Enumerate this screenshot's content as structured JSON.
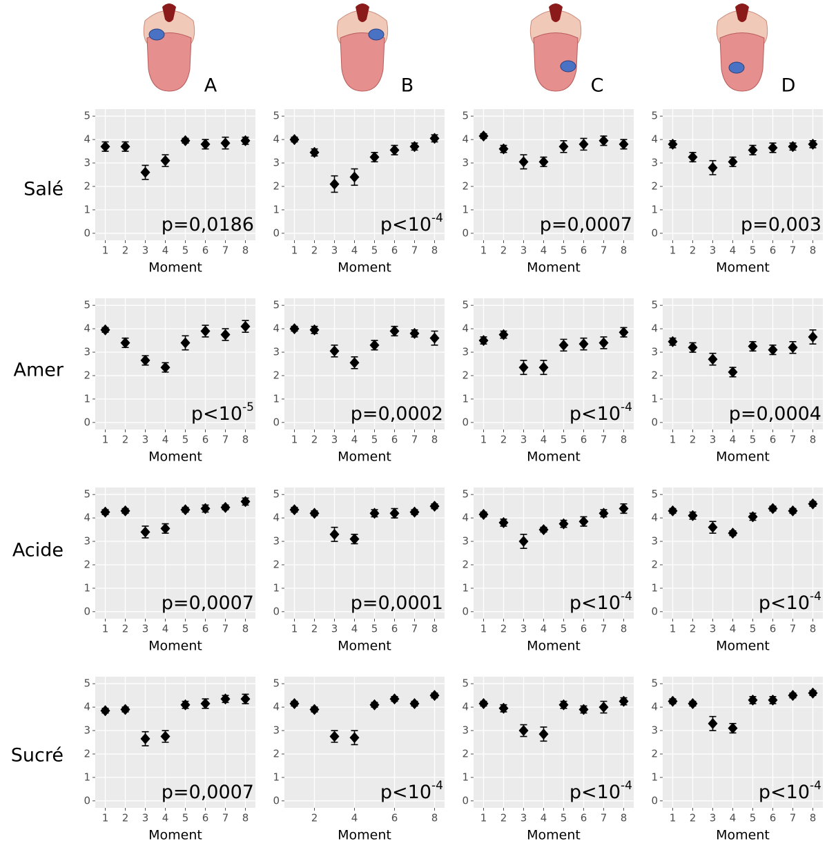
{
  "columns": [
    "A",
    "B",
    "C",
    "D"
  ],
  "rows": [
    "Salé",
    "Amer",
    "Acide",
    "Sucré"
  ],
  "chart_data": [
    {
      "type": "scatter",
      "x": [
        1,
        2,
        3,
        4,
        5,
        6,
        7,
        8
      ],
      "values": [
        3.7,
        3.7,
        2.6,
        3.1,
        3.95,
        3.8,
        3.85,
        3.95
      ],
      "errors": [
        0.2,
        0.2,
        0.3,
        0.25,
        0.1,
        0.2,
        0.25,
        0.15
      ],
      "xlabel": "Moment",
      "annotation": "p=0,0186",
      "xlim": [
        0.5,
        8.5
      ],
      "ylim": [
        -0.3,
        5.3
      ],
      "xticks": [
        1,
        2,
        3,
        4,
        5,
        6,
        7,
        8
      ],
      "yticks": [
        0,
        1,
        2,
        3,
        4,
        5
      ],
      "grid": true,
      "color": "#000000"
    },
    {
      "type": "scatter",
      "x": [
        1,
        2,
        3,
        4,
        5,
        6,
        7,
        8
      ],
      "values": [
        4.0,
        3.45,
        2.1,
        2.4,
        3.25,
        3.55,
        3.7,
        4.05
      ],
      "errors": [
        0.1,
        0.15,
        0.35,
        0.35,
        0.2,
        0.2,
        0.15,
        0.15
      ],
      "xlabel": "Moment",
      "annotation": "p<10",
      "annotation_exponent": "-4",
      "xlim": [
        0.5,
        8.5
      ],
      "ylim": [
        -0.3,
        5.3
      ],
      "xticks": [
        1,
        2,
        3,
        4,
        5,
        6,
        7,
        8
      ],
      "yticks": [
        0,
        1,
        2,
        3,
        4,
        5
      ],
      "grid": true,
      "color": "#000000"
    },
    {
      "type": "scatter",
      "x": [
        1,
        2,
        3,
        4,
        5,
        6,
        7,
        8
      ],
      "values": [
        4.15,
        3.6,
        3.05,
        3.05,
        3.7,
        3.8,
        3.95,
        3.8
      ],
      "errors": [
        0.1,
        0.15,
        0.3,
        0.2,
        0.25,
        0.25,
        0.2,
        0.2
      ],
      "xlabel": "Moment",
      "annotation": "p=0,0007",
      "xlim": [
        0.5,
        8.5
      ],
      "ylim": [
        -0.3,
        5.3
      ],
      "xticks": [
        1,
        2,
        3,
        4,
        5,
        6,
        7,
        8
      ],
      "yticks": [
        0,
        1,
        2,
        3,
        4,
        5
      ],
      "grid": true,
      "color": "#000000"
    },
    {
      "type": "scatter",
      "x": [
        1,
        2,
        3,
        4,
        5,
        6,
        7,
        8
      ],
      "values": [
        3.8,
        3.25,
        2.8,
        3.05,
        3.55,
        3.65,
        3.7,
        3.8
      ],
      "errors": [
        0.15,
        0.2,
        0.3,
        0.2,
        0.2,
        0.2,
        0.15,
        0.15
      ],
      "xlabel": "Moment",
      "annotation": "p=0,003",
      "xlim": [
        0.5,
        8.5
      ],
      "ylim": [
        -0.3,
        5.3
      ],
      "xticks": [
        1,
        2,
        3,
        4,
        5,
        6,
        7,
        8
      ],
      "yticks": [
        0,
        1,
        2,
        3,
        4,
        5
      ],
      "grid": true,
      "color": "#000000"
    },
    {
      "type": "scatter",
      "x": [
        1,
        2,
        3,
        4,
        5,
        6,
        7,
        8
      ],
      "values": [
        3.95,
        3.4,
        2.65,
        2.35,
        3.4,
        3.9,
        3.75,
        4.1
      ],
      "errors": [
        0.1,
        0.2,
        0.2,
        0.2,
        0.3,
        0.25,
        0.25,
        0.25
      ],
      "xlabel": "Moment",
      "annotation": "p<10",
      "annotation_exponent": "-5",
      "xlim": [
        0.5,
        8.5
      ],
      "ylim": [
        -0.3,
        5.3
      ],
      "xticks": [
        1,
        2,
        3,
        4,
        5,
        6,
        7,
        8
      ],
      "yticks": [
        0,
        1,
        2,
        3,
        4,
        5
      ],
      "grid": true,
      "color": "#000000"
    },
    {
      "type": "scatter",
      "x": [
        1,
        2,
        3,
        4,
        5,
        6,
        7,
        8
      ],
      "values": [
        4.0,
        3.95,
        3.05,
        2.55,
        3.3,
        3.9,
        3.8,
        3.6
      ],
      "errors": [
        0.1,
        0.15,
        0.25,
        0.25,
        0.2,
        0.2,
        0.15,
        0.3
      ],
      "xlabel": "Moment",
      "annotation": "p=0,0002",
      "xlim": [
        0.5,
        8.5
      ],
      "ylim": [
        -0.3,
        5.3
      ],
      "xticks": [
        1,
        2,
        3,
        4,
        5,
        6,
        7,
        8
      ],
      "yticks": [
        0,
        1,
        2,
        3,
        4,
        5
      ],
      "grid": true,
      "color": "#000000"
    },
    {
      "type": "scatter",
      "x": [
        1,
        2,
        3,
        4,
        5,
        6,
        7,
        8
      ],
      "values": [
        3.5,
        3.75,
        2.35,
        2.35,
        3.3,
        3.35,
        3.4,
        3.85
      ],
      "errors": [
        0.15,
        0.15,
        0.3,
        0.3,
        0.25,
        0.25,
        0.25,
        0.2
      ],
      "xlabel": "Moment",
      "annotation": "p<10",
      "annotation_exponent": "-4",
      "xlim": [
        0.5,
        8.5
      ],
      "ylim": [
        -0.3,
        5.3
      ],
      "xticks": [
        1,
        2,
        3,
        4,
        5,
        6,
        7,
        8
      ],
      "yticks": [
        0,
        1,
        2,
        3,
        4,
        5
      ],
      "grid": true,
      "color": "#000000"
    },
    {
      "type": "scatter",
      "x": [
        1,
        2,
        3,
        4,
        5,
        6,
        7,
        8
      ],
      "values": [
        3.45,
        3.2,
        2.7,
        2.15,
        3.25,
        3.1,
        3.2,
        3.65
      ],
      "errors": [
        0.15,
        0.2,
        0.25,
        0.2,
        0.2,
        0.2,
        0.25,
        0.3
      ],
      "xlabel": "Moment",
      "annotation": "p=0,0004",
      "xlim": [
        0.5,
        8.5
      ],
      "ylim": [
        -0.3,
        5.3
      ],
      "xticks": [
        1,
        2,
        3,
        4,
        5,
        6,
        7,
        8
      ],
      "yticks": [
        0,
        1,
        2,
        3,
        4,
        5
      ],
      "grid": true,
      "color": "#000000"
    },
    {
      "type": "scatter",
      "x": [
        1,
        2,
        3,
        4,
        5,
        6,
        7,
        8
      ],
      "values": [
        4.25,
        4.3,
        3.4,
        3.55,
        4.35,
        4.4,
        4.45,
        4.7
      ],
      "errors": [
        0.1,
        0.1,
        0.25,
        0.2,
        0.1,
        0.15,
        0.1,
        0.15
      ],
      "xlabel": "Moment",
      "annotation": "p=0,0007",
      "xlim": [
        0.5,
        8.5
      ],
      "ylim": [
        -0.3,
        5.3
      ],
      "xticks": [
        1,
        2,
        3,
        4,
        5,
        6,
        7,
        8
      ],
      "yticks": [
        0,
        1,
        2,
        3,
        4,
        5
      ],
      "grid": true,
      "color": "#000000"
    },
    {
      "type": "scatter",
      "x": [
        1,
        2,
        3,
        4,
        5,
        6,
        7,
        8
      ],
      "values": [
        4.35,
        4.2,
        3.3,
        3.1,
        4.2,
        4.2,
        4.25,
        4.5
      ],
      "errors": [
        0.1,
        0.1,
        0.3,
        0.2,
        0.15,
        0.2,
        0.1,
        0.1
      ],
      "xlabel": "Moment",
      "annotation": "p=0,0001",
      "xlim": [
        0.5,
        8.5
      ],
      "ylim": [
        -0.3,
        5.3
      ],
      "xticks": [
        1,
        2,
        3,
        4,
        5,
        6,
        7,
        8
      ],
      "yticks": [
        0,
        1,
        2,
        3,
        4,
        5
      ],
      "grid": true,
      "color": "#000000"
    },
    {
      "type": "scatter",
      "x": [
        1,
        2,
        3,
        4,
        5,
        6,
        7,
        8
      ],
      "values": [
        4.15,
        3.8,
        3.0,
        3.5,
        3.75,
        3.85,
        4.2,
        4.4
      ],
      "errors": [
        0.1,
        0.15,
        0.3,
        0.1,
        0.15,
        0.2,
        0.15,
        0.2
      ],
      "xlabel": "Moment",
      "annotation": "p<10",
      "annotation_exponent": "-4",
      "xlim": [
        0.5,
        8.5
      ],
      "ylim": [
        -0.3,
        5.3
      ],
      "xticks": [
        1,
        2,
        3,
        4,
        5,
        6,
        7,
        8
      ],
      "yticks": [
        0,
        1,
        2,
        3,
        4,
        5
      ],
      "grid": true,
      "color": "#000000"
    },
    {
      "type": "scatter",
      "x": [
        1,
        2,
        3,
        4,
        5,
        6,
        7,
        8
      ],
      "values": [
        4.3,
        4.1,
        3.6,
        3.35,
        4.05,
        4.4,
        4.3,
        4.6
      ],
      "errors": [
        0.1,
        0.15,
        0.25,
        0.1,
        0.15,
        0.1,
        0.1,
        0.1
      ],
      "xlabel": "Moment",
      "annotation": "p<10",
      "annotation_exponent": "-4",
      "xlim": [
        0.5,
        8.5
      ],
      "ylim": [
        -0.3,
        5.3
      ],
      "xticks": [
        1,
        2,
        3,
        4,
        5,
        6,
        7,
        8
      ],
      "yticks": [
        0,
        1,
        2,
        3,
        4,
        5
      ],
      "grid": true,
      "color": "#000000"
    },
    {
      "type": "scatter",
      "x": [
        1,
        2,
        3,
        4,
        5,
        6,
        7,
        8
      ],
      "values": [
        3.85,
        3.9,
        2.65,
        2.75,
        4.1,
        4.15,
        4.35,
        4.35
      ],
      "errors": [
        0.1,
        0.1,
        0.3,
        0.25,
        0.15,
        0.2,
        0.15,
        0.2
      ],
      "xlabel": "Moment",
      "annotation": "p=0,0007",
      "xlim": [
        0.5,
        8.5
      ],
      "ylim": [
        -0.3,
        5.3
      ],
      "xticks": [
        1,
        2,
        3,
        4,
        5,
        6,
        7,
        8
      ],
      "yticks": [
        0,
        1,
        2,
        3,
        4,
        5
      ],
      "grid": true,
      "color": "#000000"
    },
    {
      "type": "scatter",
      "x": [
        1,
        2,
        3,
        4,
        5,
        6,
        7,
        8
      ],
      "values": [
        4.15,
        3.9,
        2.75,
        2.7,
        4.1,
        4.35,
        4.15,
        4.5
      ],
      "errors": [
        0.1,
        0.1,
        0.25,
        0.3,
        0.1,
        0.1,
        0.1,
        0.1
      ],
      "xlabel": "Moment",
      "annotation": "p<10",
      "annotation_exponent": "-4",
      "xlim": [
        0.5,
        8.5
      ],
      "ylim": [
        -0.3,
        5.3
      ],
      "xticks": [
        2,
        4,
        6,
        8
      ],
      "yticks": [
        0,
        1,
        2,
        3,
        4,
        5
      ],
      "grid": true,
      "color": "#000000"
    },
    {
      "type": "scatter",
      "x": [
        1,
        2,
        3,
        4,
        5,
        6,
        7,
        8
      ],
      "values": [
        4.15,
        3.95,
        3.0,
        2.85,
        4.1,
        3.9,
        4.0,
        4.25
      ],
      "errors": [
        0.1,
        0.15,
        0.25,
        0.3,
        0.15,
        0.15,
        0.25,
        0.15
      ],
      "xlabel": "Moment",
      "annotation": "p<10",
      "annotation_exponent": "-4",
      "xlim": [
        0.5,
        8.5
      ],
      "ylim": [
        -0.3,
        5.3
      ],
      "xticks": [
        1,
        2,
        3,
        4,
        5,
        6,
        7,
        8
      ],
      "yticks": [
        0,
        1,
        2,
        3,
        4,
        5
      ],
      "grid": true,
      "color": "#000000"
    },
    {
      "type": "scatter",
      "x": [
        1,
        2,
        3,
        4,
        5,
        6,
        7,
        8
      ],
      "values": [
        4.25,
        4.15,
        3.3,
        3.1,
        4.3,
        4.3,
        4.5,
        4.6
      ],
      "errors": [
        0.1,
        0.1,
        0.3,
        0.2,
        0.15,
        0.15,
        0.1,
        0.1
      ],
      "xlabel": "Moment",
      "annotation": "p<10",
      "annotation_exponent": "-4",
      "xlim": [
        0.5,
        8.5
      ],
      "ylim": [
        -0.3,
        5.3
      ],
      "xticks": [
        1,
        2,
        3,
        4,
        5,
        6,
        7,
        8
      ],
      "yticks": [
        0,
        1,
        2,
        3,
        4,
        5
      ],
      "grid": true,
      "color": "#000000"
    }
  ]
}
